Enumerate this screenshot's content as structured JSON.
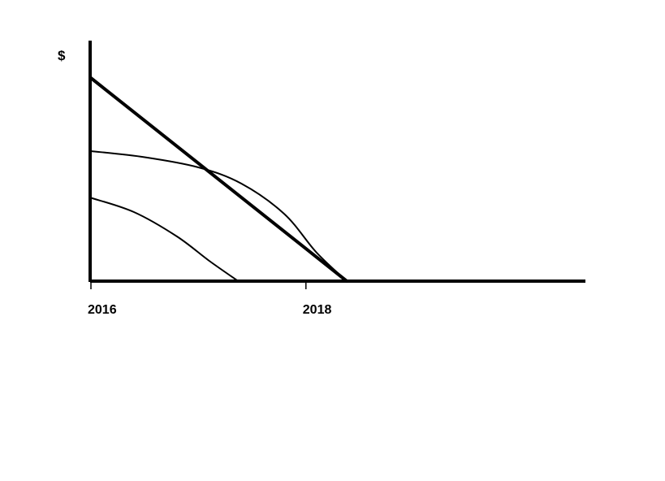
{
  "chart_data": {
    "type": "line",
    "title": "",
    "xlabel": "",
    "ylabel": "$",
    "x_ticks": [
      2016,
      2018
    ],
    "xlim": [
      2016,
      2020.6
    ],
    "ylim": [
      0,
      1.15
    ],
    "grid": false,
    "legend": "none",
    "series": [
      {
        "x": [
          2016,
          2018.38
        ],
        "y": [
          1.0,
          0.0
        ]
      },
      {
        "x": [
          2016,
          2016.5,
          2017.0,
          2017.4,
          2017.8,
          2018.1,
          2018.38
        ],
        "y": [
          0.64,
          0.61,
          0.56,
          0.48,
          0.33,
          0.14,
          0.0
        ]
      },
      {
        "x": [
          2016,
          2016.4,
          2016.8,
          2017.1,
          2017.37
        ],
        "y": [
          0.41,
          0.34,
          0.22,
          0.1,
          0.0
        ]
      }
    ]
  },
  "colors": {
    "ink": "#000000",
    "background": "#ffffff"
  }
}
